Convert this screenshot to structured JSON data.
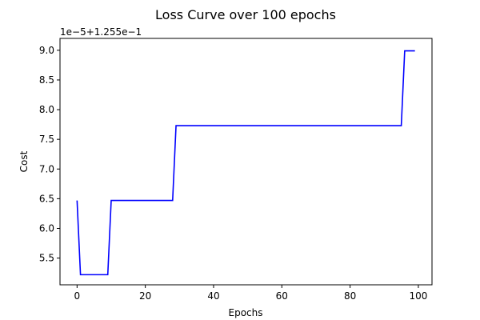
{
  "chart_data": {
    "type": "line",
    "title": "Loss Curve over 100 epochs",
    "xlabel": "Epochs",
    "ylabel": "Cost",
    "y_offset_label": "1e−5+1.255e−1",
    "xlim": [
      -5,
      104
    ],
    "ylim": [
      5.05,
      9.2
    ],
    "grid": false,
    "x_ticks": [
      0,
      20,
      40,
      60,
      80,
      100
    ],
    "x_tick_labels": [
      "0",
      "20",
      "40",
      "60",
      "80",
      "100"
    ],
    "y_ticks": [
      5.5,
      6.0,
      6.5,
      7.0,
      7.5,
      8.0,
      8.5,
      9.0
    ],
    "y_tick_labels": [
      "5.5",
      "6.0",
      "6.5",
      "7.0",
      "7.5",
      "8.0",
      "8.5",
      "9.0"
    ],
    "series": [
      {
        "color": "#0000ff",
        "x": [
          0,
          1,
          9,
          10,
          28,
          29,
          95,
          96,
          99
        ],
        "y": [
          6.47,
          5.22,
          5.22,
          6.47,
          6.47,
          7.73,
          7.73,
          8.99,
          8.99
        ]
      }
    ]
  }
}
